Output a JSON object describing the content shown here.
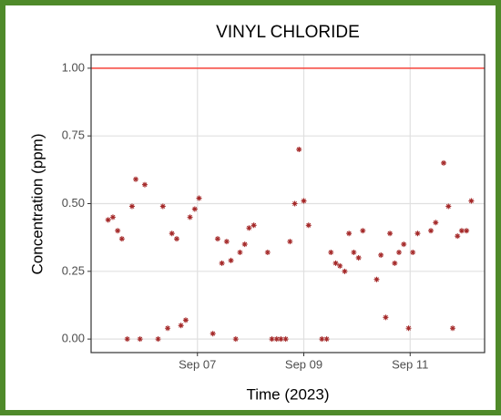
{
  "chart_data": {
    "type": "scatter",
    "title": "VINYL CHLORIDE",
    "x_label": "Time (2023)",
    "y_label": "Concentration (ppm)",
    "x": [
      5.32,
      5.41,
      5.5,
      5.58,
      5.68,
      5.77,
      5.84,
      5.92,
      6.01,
      6.26,
      6.35,
      6.44,
      6.52,
      6.61,
      6.69,
      6.78,
      6.86,
      6.95,
      7.03,
      7.29,
      7.38,
      7.46,
      7.55,
      7.63,
      7.72,
      7.8,
      7.89,
      7.97,
      8.06,
      8.32,
      8.4,
      8.49,
      8.57,
      8.66,
      8.74,
      8.83,
      8.91,
      9.0,
      9.09,
      9.34,
      9.43,
      9.51,
      9.6,
      9.68,
      9.77,
      9.85,
      9.94,
      10.03,
      10.11,
      10.37,
      10.45,
      10.54,
      10.62,
      10.71,
      10.79,
      10.88,
      10.97,
      11.05,
      11.14,
      11.39,
      11.48,
      11.63,
      11.72,
      11.8,
      11.89,
      11.97,
      12.06,
      12.15
    ],
    "values": [
      0.44,
      0.45,
      0.4,
      0.37,
      0,
      0.49,
      0.59,
      0,
      0.57,
      0,
      0.49,
      0.04,
      0.39,
      0.37,
      0.05,
      0.07,
      0.45,
      0.48,
      0.52,
      0.02,
      0.37,
      0.28,
      0.36,
      0.29,
      0,
      0.32,
      0.35,
      0.41,
      0.42,
      0.32,
      0,
      0,
      0,
      0,
      0.36,
      0.5,
      0.7,
      0.51,
      0.42,
      0,
      0,
      0.32,
      0.28,
      0.27,
      0.25,
      0.39,
      0.32,
      0.3,
      0.4,
      0.22,
      0.31,
      0.08,
      0.39,
      0.28,
      0.32,
      0.35,
      0.04,
      0.32,
      0.39,
      0.4,
      0.43,
      0.65,
      0.49,
      0.04,
      0.38,
      0.4,
      0.4,
      0.51
    ],
    "color": "#a52a2a",
    "threshold": 1,
    "threshold_color": "#f8433a",
    "xlim": [
      5.0,
      12.4
    ],
    "ylim": [
      -0.05,
      1.05
    ],
    "xticks": [
      {
        "value": 7,
        "label": "Sep 07"
      },
      {
        "value": 9,
        "label": "Sep 09"
      },
      {
        "value": 11,
        "label": "Sep 11"
      }
    ],
    "yticks": [
      {
        "value": 0,
        "label": "0.00"
      },
      {
        "value": 0.25,
        "label": "0.25"
      },
      {
        "value": 0.5,
        "label": "0.50"
      },
      {
        "value": 0.75,
        "label": "0.75"
      },
      {
        "value": 1,
        "label": "1.00"
      }
    ],
    "grid": true
  }
}
